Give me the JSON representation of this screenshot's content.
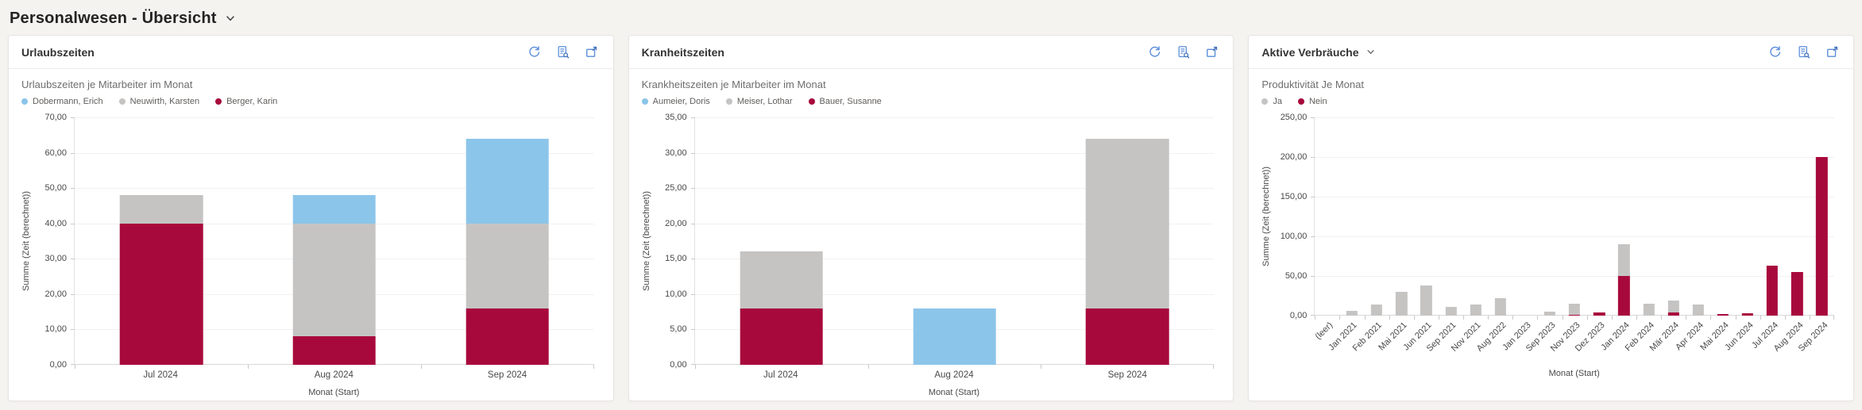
{
  "page": {
    "title": "Personalwesen - Übersicht",
    "title_chevron_icon": "chevron-down-icon"
  },
  "colors": {
    "series_blue": "#8cc5ea",
    "series_gray": "#c5c4c3",
    "series_red": "#a8093c",
    "icon_blue": "#5b8dd9",
    "panel_bg": "#ffffff",
    "page_bg": "#f5f3f0"
  },
  "panels": [
    {
      "title": "Urlaubszeiten",
      "has_title_chevron": false,
      "toolbar_icons": [
        "refresh-icon",
        "analyze-report-icon",
        "expand-icon"
      ]
    },
    {
      "title": "Kranheitszeiten",
      "has_title_chevron": false,
      "toolbar_icons": [
        "refresh-icon",
        "analyze-report-icon",
        "expand-icon"
      ]
    },
    {
      "title": "Aktive Verbräuche",
      "has_title_chevron": true,
      "toolbar_icons": [
        "refresh-icon",
        "analyze-report-icon",
        "expand-icon"
      ]
    }
  ],
  "chart_data": [
    {
      "type": "bar",
      "stacked": true,
      "title": "Urlaubszeiten je Mitarbeiter im Monat",
      "categories": [
        "Jul 2024",
        "Aug 2024",
        "Sep 2024"
      ],
      "series": [
        {
          "name": "Dobermann, Erich",
          "color": "#8cc5ea",
          "values": [
            0,
            8,
            24
          ]
        },
        {
          "name": "Neuwirth, Karsten",
          "color": "#c5c4c3",
          "values": [
            8,
            32,
            24
          ]
        },
        {
          "name": "Berger, Karin",
          "color": "#a8093c",
          "values": [
            40,
            8,
            16
          ]
        }
      ],
      "stack_order_bottom_to_top": [
        "Berger, Karin",
        "Neuwirth, Karsten",
        "Dobermann, Erich"
      ],
      "xlabel": "Monat (Start)",
      "ylabel": "Summe (Zeit (berechnet))",
      "ylim": [
        0,
        70
      ],
      "ytick_step": 10,
      "ytick_format": "de-decimal-2",
      "grid": true,
      "legend_position": "top"
    },
    {
      "type": "bar",
      "stacked": true,
      "title": "Krankheitszeiten je Mitarbeiter im Monat",
      "categories": [
        "Jul 2024",
        "Aug 2024",
        "Sep 2024"
      ],
      "series": [
        {
          "name": "Aumeier, Doris",
          "color": "#8cc5ea",
          "values": [
            0,
            8,
            0
          ]
        },
        {
          "name": "Meiser, Lothar",
          "color": "#c5c4c3",
          "values": [
            8,
            0,
            24
          ]
        },
        {
          "name": "Bauer, Susanne",
          "color": "#a8093c",
          "values": [
            8,
            0,
            8
          ]
        }
      ],
      "stack_order_bottom_to_top": [
        "Bauer, Susanne",
        "Meiser, Lothar",
        "Aumeier, Doris"
      ],
      "xlabel": "Monat (Start)",
      "ylabel": "Summe (Zeit (berechnet))",
      "ylim": [
        0,
        35
      ],
      "ytick_step": 5,
      "ytick_format": "de-decimal-2",
      "grid": true,
      "legend_position": "top"
    },
    {
      "type": "bar",
      "stacked": true,
      "title": "Produktivität Je Monat",
      "categories": [
        "(leer)",
        "Jan 2021",
        "Feb 2021",
        "Mai 2021",
        "Jun 2021",
        "Sep 2021",
        "Nov 2021",
        "Aug 2022",
        "Jan 2023",
        "Sep 2023",
        "Nov 2023",
        "Dez 2023",
        "Jan 2024",
        "Feb 2024",
        "Mär 2024",
        "Apr 2024",
        "Mai 2024",
        "Jun 2024",
        "Jul 2024",
        "Aug 2024",
        "Sep 2024"
      ],
      "series": [
        {
          "name": "Ja",
          "color": "#c5c4c3",
          "values": [
            0,
            6,
            14,
            30,
            38,
            11,
            14,
            22,
            0,
            5,
            14,
            0,
            40,
            15,
            15,
            14,
            0,
            0,
            0,
            0,
            0
          ]
        },
        {
          "name": "Nein",
          "color": "#a8093c",
          "values": [
            0,
            0,
            0,
            0,
            0,
            0,
            0,
            0,
            0,
            0,
            1,
            4,
            50,
            0,
            4,
            0,
            2,
            3,
            63,
            55,
            200
          ]
        }
      ],
      "stack_order_bottom_to_top": [
        "Nein",
        "Ja"
      ],
      "xlabel": "Monat (Start)",
      "ylabel": "Summe (Zeit (berechnet))",
      "ylim": [
        0,
        250
      ],
      "ytick_step": 50,
      "ytick_format": "de-decimal-2",
      "grid": true,
      "legend_position": "top",
      "xlabel_rotation": -45
    }
  ]
}
